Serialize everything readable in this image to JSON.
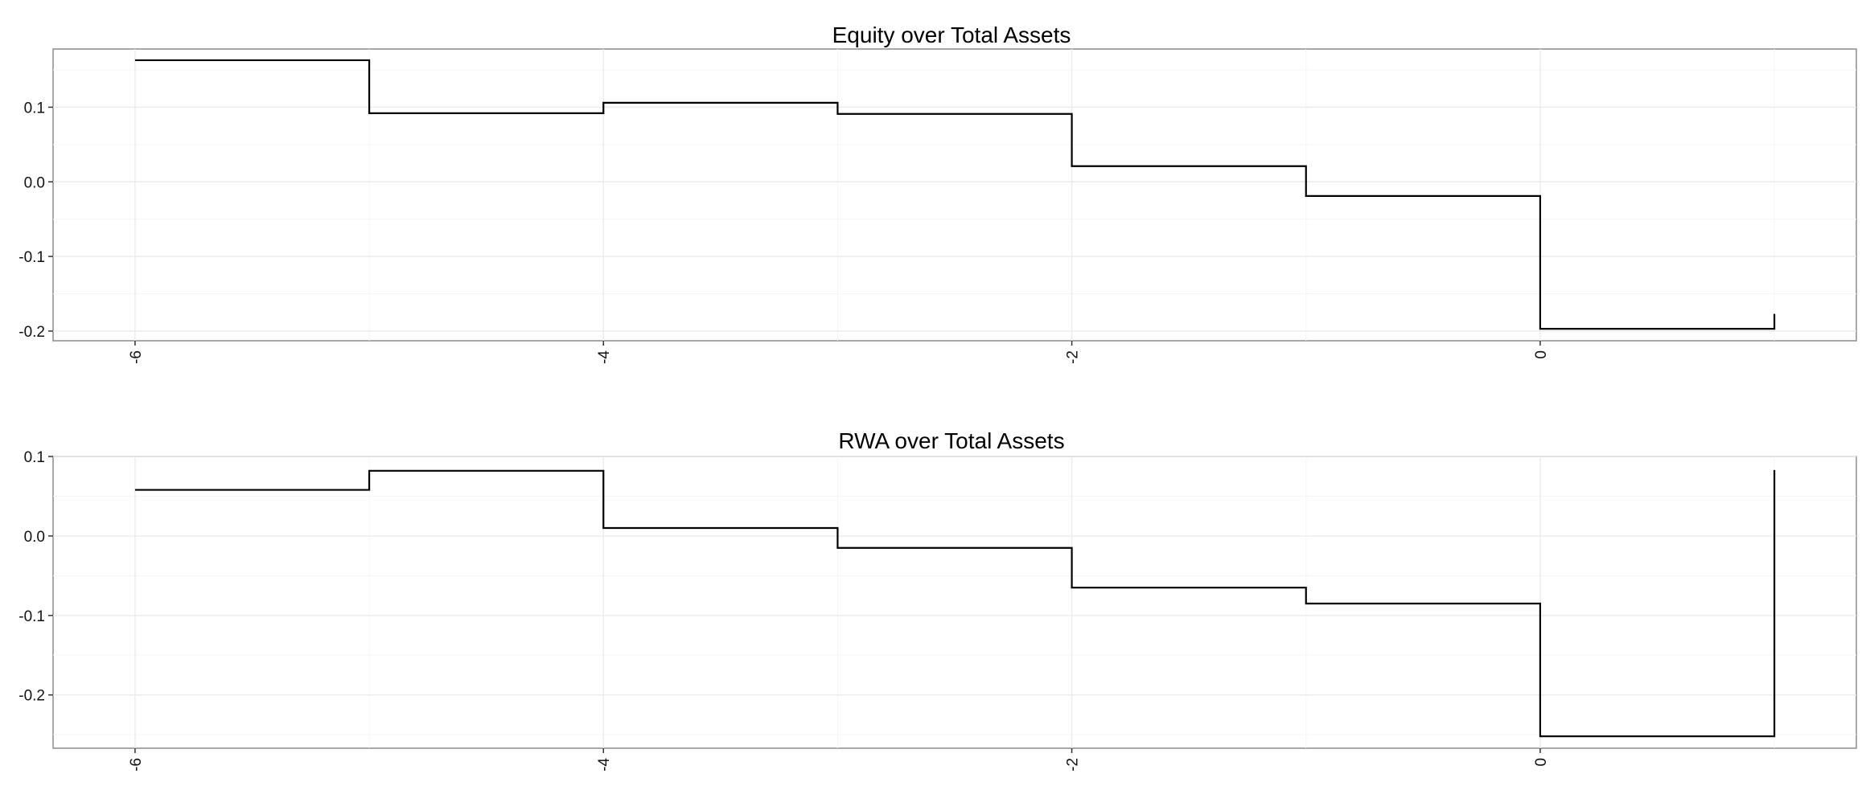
{
  "chart_data": [
    {
      "type": "line",
      "step": "hv",
      "title": "Equity over Total Assets",
      "xlabel": "",
      "ylabel": "",
      "x": [
        -6,
        -5,
        -4,
        -3,
        -2,
        -1,
        0,
        1
      ],
      "series": [
        {
          "values": [
            0.163,
            0.092,
            0.106,
            0.091,
            0.021,
            -0.019,
            -0.197,
            -0.177
          ]
        }
      ],
      "xlim": [
        -6.35,
        1.35
      ],
      "ylim": [
        -0.213,
        0.178
      ],
      "x_ticks": [
        -6,
        -4,
        -2,
        0
      ],
      "x_tick_labels": [
        "-6",
        "-4",
        "-2",
        "0"
      ],
      "y_ticks": [
        -0.2,
        -0.1,
        0.0,
        0.1
      ],
      "y_tick_labels": [
        "-0.2",
        "-0.1",
        "0.0",
        "0.1"
      ],
      "grid": true,
      "line_color": "#000000",
      "grid_color": "#ebebeb"
    },
    {
      "type": "line",
      "step": "hv",
      "title": "RWA over Total Assets",
      "xlabel": "",
      "ylabel": "",
      "x": [
        -6,
        -5,
        -4,
        -3,
        -2,
        -1,
        0,
        1
      ],
      "series": [
        {
          "values": [
            0.058,
            0.082,
            0.01,
            -0.015,
            -0.065,
            -0.085,
            -0.252,
            0.083
          ]
        }
      ],
      "xlim": [
        -6.35,
        1.35
      ],
      "ylim": [
        -0.267,
        0.1
      ],
      "x_ticks": [
        -6,
        -4,
        -2,
        0
      ],
      "x_tick_labels": [
        "-6",
        "-4",
        "-2",
        "0"
      ],
      "y_ticks": [
        -0.2,
        -0.1,
        0.0,
        0.1
      ],
      "y_tick_labels": [
        "-0.2",
        "-0.1",
        "0.0",
        "0.1"
      ],
      "grid": true,
      "line_color": "#000000",
      "grid_color": "#ebebeb"
    }
  ]
}
